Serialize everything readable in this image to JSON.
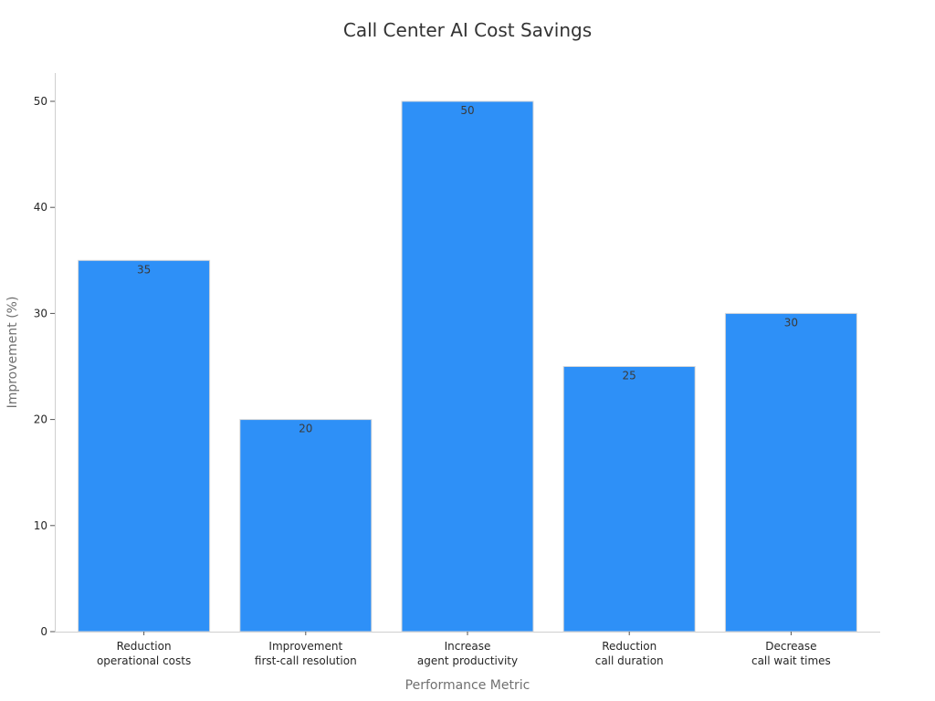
{
  "chart_data": {
    "type": "bar",
    "title": "Call Center AI Cost Savings",
    "xlabel": "Performance Metric",
    "ylabel": "Improvement (%)",
    "categories": [
      [
        "Reduction",
        "operational costs"
      ],
      [
        "Improvement",
        "first-call resolution"
      ],
      [
        "Increase",
        "agent productivity"
      ],
      [
        "Reduction",
        "call duration"
      ],
      [
        "Decrease",
        "call wait times"
      ]
    ],
    "values": [
      35,
      20,
      50,
      25,
      30
    ],
    "data_labels": [
      "35",
      "20",
      "50",
      "25",
      "30"
    ],
    "yticks": [
      0,
      10,
      20,
      30,
      40,
      50
    ],
    "ylim": [
      0,
      52.5
    ],
    "grid": false,
    "bar_color": "#2E90F7",
    "bar_edge_color": "#d8d8d8"
  }
}
